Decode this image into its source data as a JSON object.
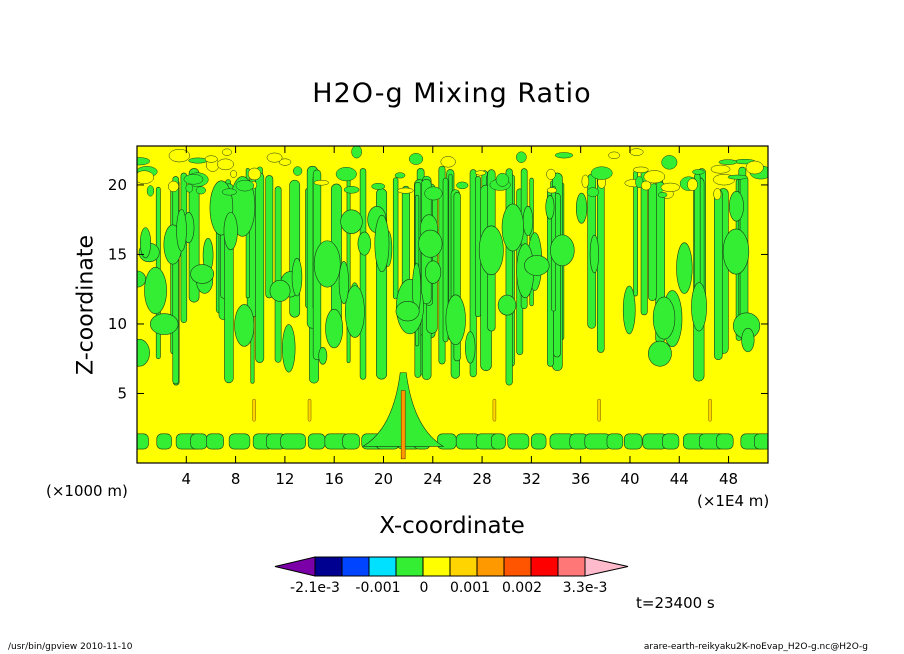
{
  "chart_data": {
    "type": "heatmap",
    "title": "H2O-g Mixing Ratio",
    "xlabel": "X-coordinate",
    "ylabel": "Z-coordinate",
    "x_unit_left": "(×1000 m)",
    "x_unit_right": "(×1E4 m)",
    "x_ticks": [
      "4",
      "8",
      "12",
      "16",
      "20",
      "24",
      "28",
      "32",
      "36",
      "40",
      "44",
      "48"
    ],
    "y_ticks": [
      "5",
      "10",
      "15",
      "20"
    ],
    "xlim": [
      0,
      51.2
    ],
    "ylim": [
      0,
      22.8
    ],
    "time_label": "t=23400 s",
    "colorbar": {
      "labels": [
        "-2.1e-3",
        "-0.001",
        "0",
        "0.001",
        "0.002",
        "3.3e-3"
      ],
      "colors": [
        "#7b00a8",
        "#000090",
        "#0044ff",
        "#00e0ff",
        "#33ee33",
        "#ffff00",
        "#ffd400",
        "#ff9900",
        "#ff5500",
        "#ff0000",
        "#ff7777",
        "#ffbbcc"
      ]
    },
    "background_color": "#ffff00",
    "anomaly_color": "#33ee33",
    "grid": false
  },
  "footer": {
    "left": "/usr/bin/gpview   2010-11-10",
    "right": "arare-earth-reikyaku2K-noEvap_H2O-g.nc@H2O-g"
  }
}
